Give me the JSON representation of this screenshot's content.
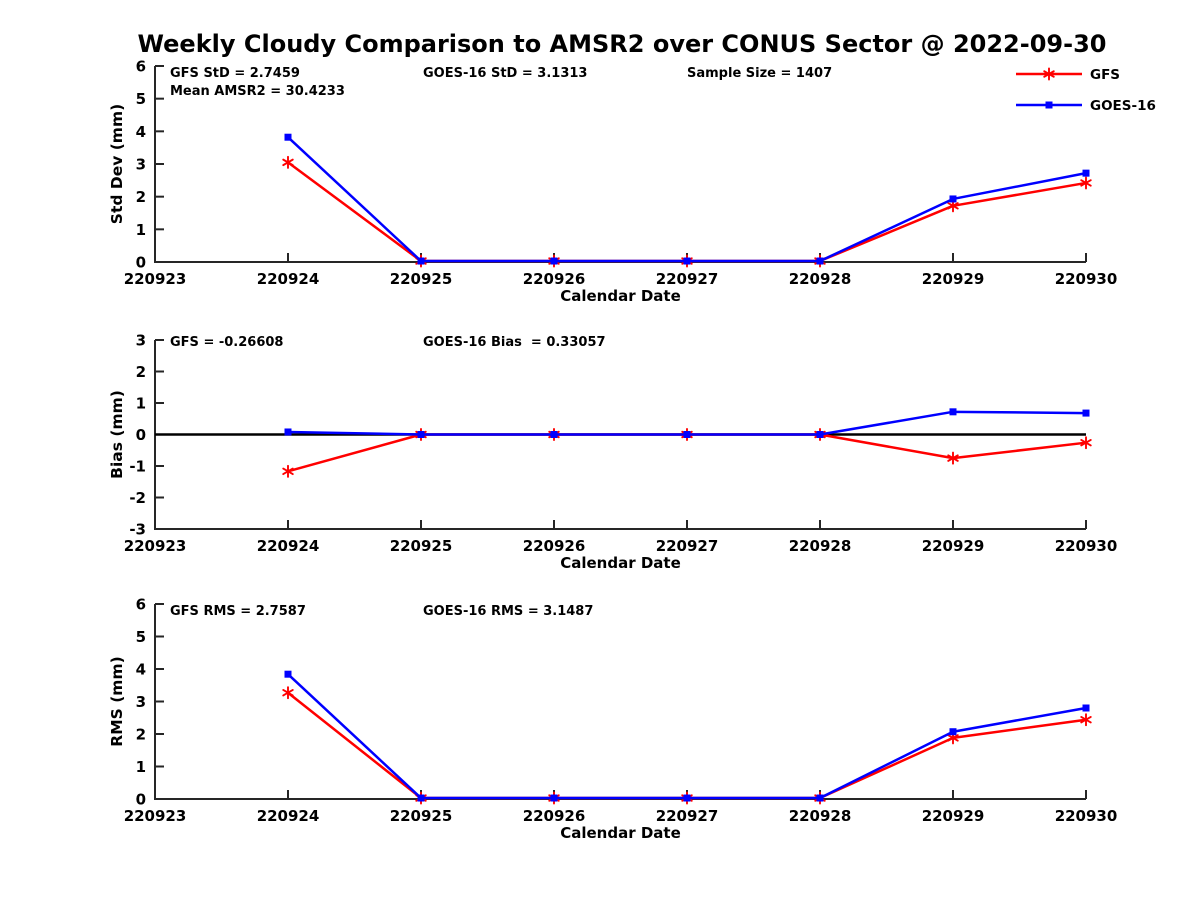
{
  "figure": {
    "title": "Weekly Cloudy Comparison to AMSR2 over CONUS Sector @ 2022-09-30",
    "background_color": "#ffffff",
    "axis_color": "#262626",
    "text_color": "#000000"
  },
  "legend": {
    "position": "top-right",
    "items": [
      {
        "label": "GFS",
        "color": "#ff0000",
        "marker": "asterisk"
      },
      {
        "label": "GOES-16",
        "color": "#0000ff",
        "marker": "square"
      }
    ]
  },
  "chart_data": [
    {
      "type": "line",
      "ylabel": "Std Dev (mm)",
      "xlabel": "Calendar Date",
      "ylim": [
        0,
        6
      ],
      "yticks": [
        0,
        1,
        2,
        3,
        4,
        5,
        6
      ],
      "xticklabels": [
        "220923",
        "220924",
        "220925",
        "220926",
        "220927",
        "220928",
        "220929",
        "220930"
      ],
      "grid": false,
      "zero_line": false,
      "annotations": [
        "GFS StD = 2.7459\nMean AMSR2 = 30.4233",
        "GOES-16 StD = 3.1313",
        "Sample Size = 1407"
      ],
      "series": [
        {
          "name": "GFS",
          "color": "#ff0000",
          "marker": "asterisk",
          "x": [
            "220924",
            "220925",
            "220926",
            "220927",
            "220928",
            "220929",
            "220930"
          ],
          "values": [
            3.05,
            0.03,
            0.03,
            0.03,
            0.03,
            1.72,
            2.42
          ]
        },
        {
          "name": "GOES-16",
          "color": "#0000ff",
          "marker": "square",
          "x": [
            "220924",
            "220925",
            "220926",
            "220927",
            "220928",
            "220929",
            "220930"
          ],
          "values": [
            3.82,
            0.03,
            0.03,
            0.03,
            0.03,
            1.93,
            2.72
          ]
        }
      ]
    },
    {
      "type": "line",
      "ylabel": "Bias (mm)",
      "xlabel": "Calendar Date",
      "ylim": [
        -3,
        3
      ],
      "yticks": [
        -3,
        -2,
        -1,
        0,
        1,
        2,
        3
      ],
      "xticklabels": [
        "220923",
        "220924",
        "220925",
        "220926",
        "220927",
        "220928",
        "220929",
        "220930"
      ],
      "grid": false,
      "zero_line": true,
      "annotations": [
        "GFS = -0.26608",
        "GOES-16 Bias  = 0.33057"
      ],
      "series": [
        {
          "name": "GFS",
          "color": "#ff0000",
          "marker": "asterisk",
          "x": [
            "220924",
            "220925",
            "220926",
            "220927",
            "220928",
            "220929",
            "220930"
          ],
          "values": [
            -1.17,
            0.0,
            0.0,
            0.0,
            0.0,
            -0.75,
            -0.26
          ]
        },
        {
          "name": "GOES-16",
          "color": "#0000ff",
          "marker": "square",
          "x": [
            "220924",
            "220925",
            "220926",
            "220927",
            "220928",
            "220929",
            "220930"
          ],
          "values": [
            0.08,
            0.0,
            0.0,
            0.0,
            0.0,
            0.72,
            0.68
          ]
        }
      ]
    },
    {
      "type": "line",
      "ylabel": "RMS (mm)",
      "xlabel": "Calendar Date",
      "ylim": [
        0,
        6
      ],
      "yticks": [
        0,
        1,
        2,
        3,
        4,
        5,
        6
      ],
      "xticklabels": [
        "220923",
        "220924",
        "220925",
        "220926",
        "220927",
        "220928",
        "220929",
        "220930"
      ],
      "grid": false,
      "zero_line": false,
      "annotations": [
        "GFS RMS = 2.7587",
        "GOES-16 RMS = 3.1487"
      ],
      "series": [
        {
          "name": "GFS",
          "color": "#ff0000",
          "marker": "asterisk",
          "x": [
            "220924",
            "220925",
            "220926",
            "220927",
            "220928",
            "220929",
            "220930"
          ],
          "values": [
            3.27,
            0.03,
            0.03,
            0.03,
            0.03,
            1.88,
            2.44
          ]
        },
        {
          "name": "GOES-16",
          "color": "#0000ff",
          "marker": "square",
          "x": [
            "220924",
            "220925",
            "220926",
            "220927",
            "220928",
            "220929",
            "220930"
          ],
          "values": [
            3.84,
            0.03,
            0.03,
            0.03,
            0.03,
            2.07,
            2.8
          ]
        }
      ]
    }
  ]
}
